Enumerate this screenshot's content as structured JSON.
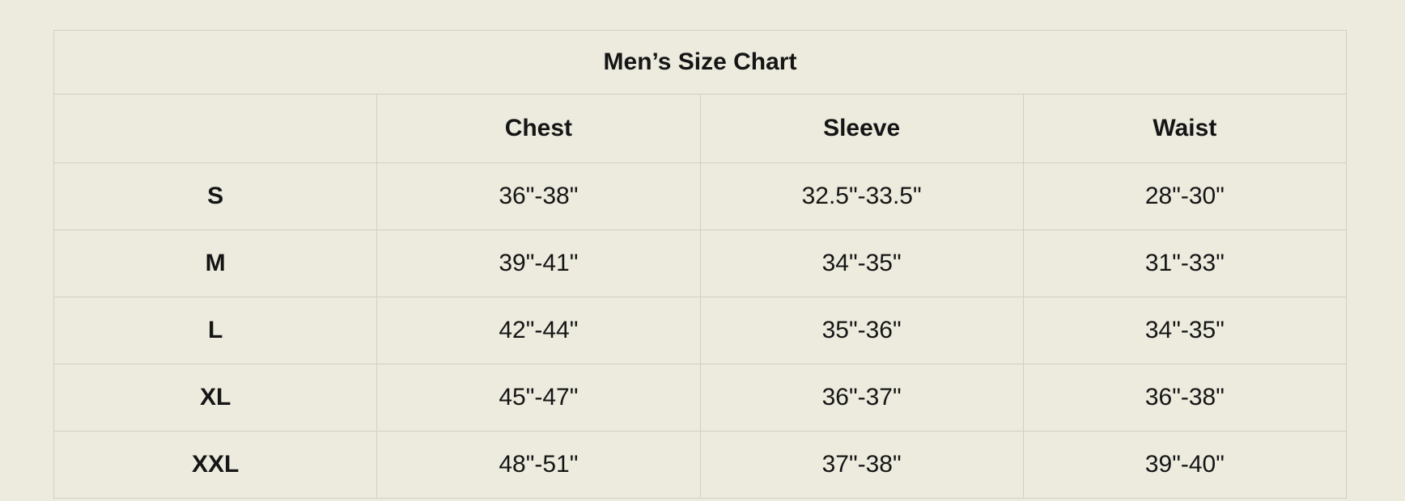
{
  "page": {
    "background_color": "#edebde",
    "border_color": "#d2d0c2",
    "text_color": "#151515"
  },
  "chart_data": {
    "type": "table",
    "title": "Men’s Size Chart",
    "columns": [
      "",
      "Chest",
      "Sleeve",
      "Waist"
    ],
    "rows": [
      {
        "size": "S",
        "chest": "36\"-38\"",
        "sleeve": "32.5\"-33.5\"",
        "waist": "28\"-30\""
      },
      {
        "size": "M",
        "chest": "39\"-41\"",
        "sleeve": "34\"-35\"",
        "waist": "31\"-33\""
      },
      {
        "size": "L",
        "chest": "42\"-44\"",
        "sleeve": "35\"-36\"",
        "waist": "34\"-35\""
      },
      {
        "size": "XL",
        "chest": "45\"-47\"",
        "sleeve": "36\"-37\"",
        "waist": "36\"-38\""
      },
      {
        "size": "XXL",
        "chest": "48\"-51\"",
        "sleeve": "37\"-38\"",
        "waist": "39\"-40\""
      }
    ]
  }
}
